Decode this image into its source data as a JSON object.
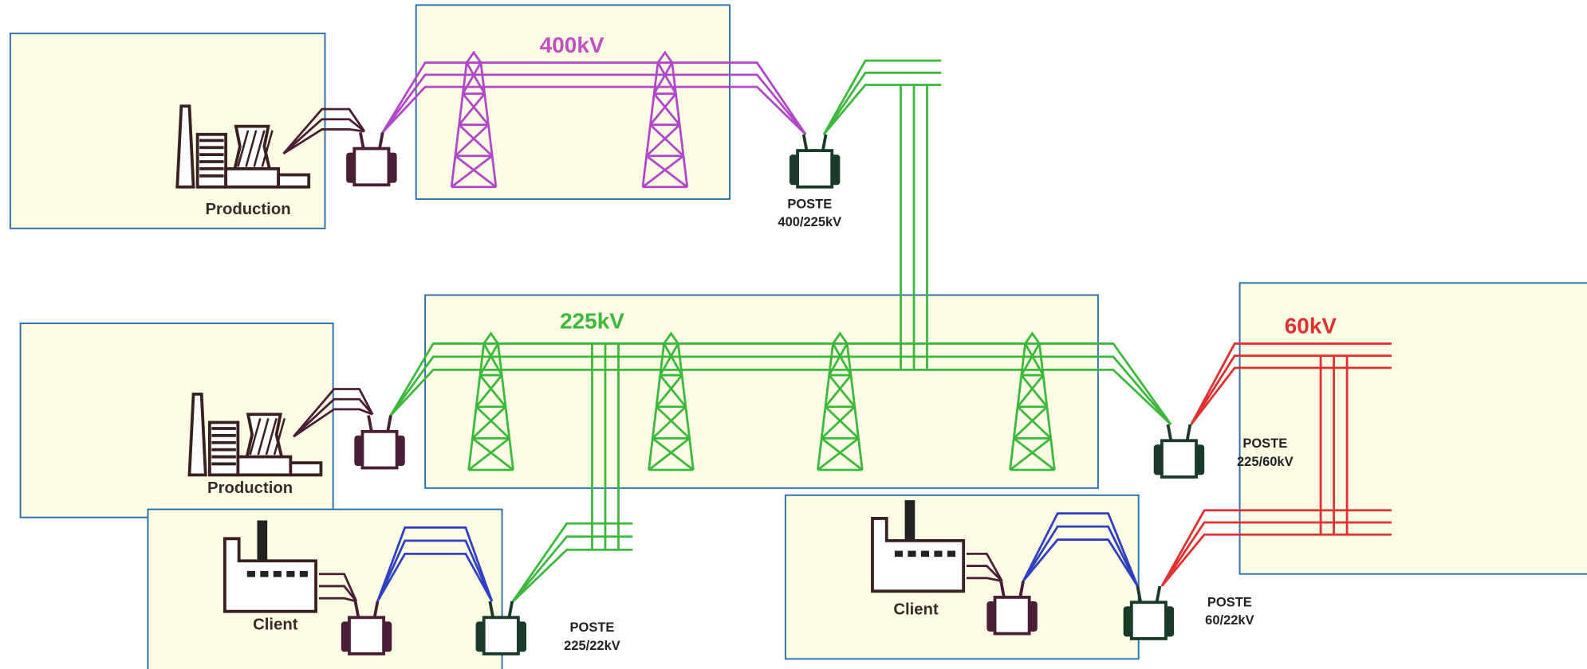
{
  "levels": {
    "high": "400kV",
    "mid": "225kV",
    "low": "60kV"
  },
  "producers": [
    {
      "label": "Production"
    },
    {
      "label": "Production"
    }
  ],
  "clients": [
    {
      "label": "Client"
    },
    {
      "label": "Client"
    }
  ],
  "substations": [
    {
      "lines": [
        "POSTE",
        "400/225kV"
      ]
    },
    {
      "lines": [
        "POSTE",
        "225/60kV"
      ]
    },
    {
      "lines": [
        "POSTE",
        "225/22kV"
      ]
    },
    {
      "lines": [
        "POSTE",
        "60/22kV"
      ]
    }
  ]
}
